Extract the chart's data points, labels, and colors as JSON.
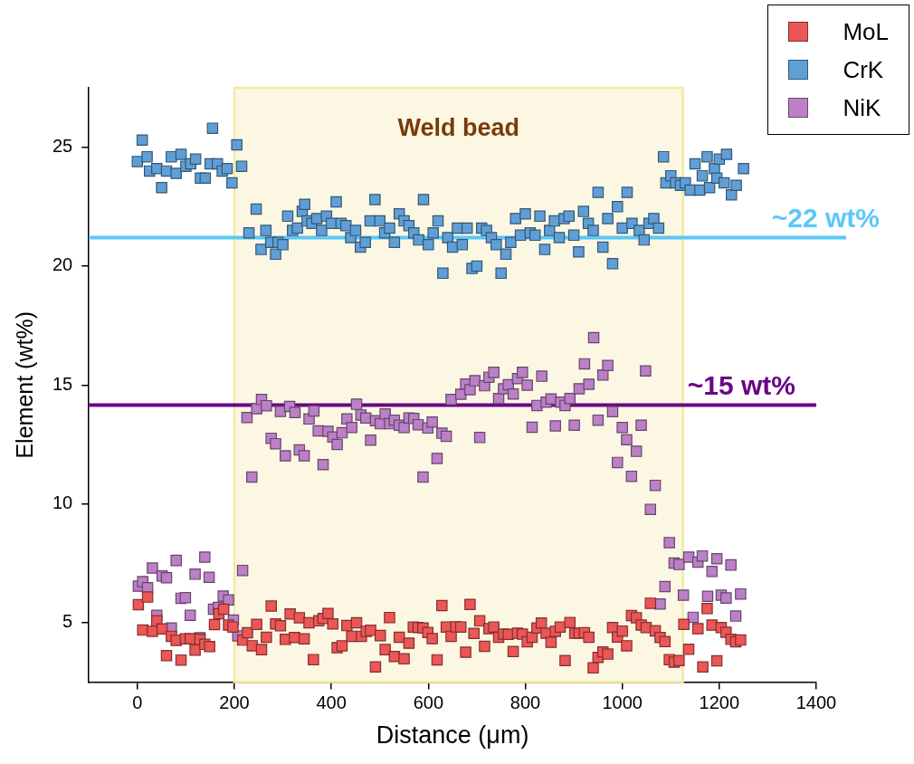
{
  "chart_data": {
    "type": "scatter",
    "xlabel": "Distance (μm)",
    "ylabel": "Element (wt%)",
    "xlim": [
      -100,
      1400
    ],
    "xticks": [
      0,
      200,
      400,
      600,
      800,
      1000,
      1200,
      1400
    ],
    "ylim": [
      2.5,
      27.5
    ],
    "yticks": [
      5,
      10,
      15,
      20,
      25
    ],
    "grid": false,
    "legend": "top right",
    "marker": "square",
    "bands": [
      {
        "axis": "x",
        "from": 200,
        "to": 1125,
        "label": "Weld bead",
        "color": "#fbf7e2"
      }
    ],
    "ref_lines": [
      {
        "axis": "y",
        "value": 21.2,
        "label": "~22 wt%",
        "color": "#5bc8f8"
      },
      {
        "axis": "y",
        "value": 14.15,
        "label": "~15 wt%",
        "color": "#6a0585"
      }
    ],
    "series": [
      {
        "name": "MoL",
        "color": "#ec5656",
        "x": [
          2,
          21,
          11,
          31,
          40,
          51,
          60,
          70,
          80,
          90,
          99,
          109,
          119,
          129,
          139,
          149,
          159,
          168,
          178,
          188,
          197,
          217,
          227,
          237,
          246,
          256,
          266,
          276,
          285,
          295,
          305,
          315,
          324,
          334,
          344,
          354,
          363,
          374,
          383,
          393,
          403,
          412,
          422,
          432,
          442,
          452,
          462,
          472,
          481,
          491,
          501,
          511,
          520,
          530,
          540,
          550,
          560,
          569,
          579,
          589,
          599,
          608,
          618,
          628,
          637,
          647,
          657,
          667,
          677,
          686,
          694,
          706,
          716,
          725,
          735,
          745,
          755,
          765,
          775,
          784,
          794,
          804,
          814,
          824,
          833,
          843,
          853,
          862,
          872,
          882,
          892,
          902,
          911,
          922,
          931,
          940,
          950,
          960,
          970,
          980,
          990,
          1000,
          1009,
          1019,
          1029,
          1039,
          1049,
          1058,
          1068,
          1078,
          1088,
          1097,
          1107,
          1117,
          1127,
          1137,
          1156,
          1166,
          1175,
          1185,
          1195,
          1204,
          1214,
          1224,
          1234,
          1244
        ],
        "values": [
          5.76,
          6.08,
          4.69,
          4.64,
          5.08,
          4.74,
          3.62,
          4.43,
          4.26,
          3.43,
          4.32,
          4.33,
          3.85,
          4.3,
          4.09,
          4.0,
          4.92,
          5.38,
          5.57,
          4.9,
          4.82,
          4.27,
          4.58,
          4.03,
          4.93,
          3.87,
          4.39,
          5.7,
          4.95,
          4.87,
          4.3,
          5.37,
          4.38,
          5.21,
          4.32,
          5.0,
          3.45,
          5.08,
          5.18,
          5.39,
          4.95,
          3.95,
          4.03,
          4.88,
          4.43,
          5.0,
          4.43,
          4.64,
          4.68,
          3.14,
          4.46,
          3.87,
          5.22,
          3.58,
          4.39,
          3.48,
          4.14,
          4.82,
          4.8,
          4.78,
          4.59,
          4.33,
          3.44,
          5.72,
          4.82,
          4.43,
          4.83,
          4.82,
          3.76,
          5.77,
          4.55,
          5.08,
          4.01,
          4.75,
          4.82,
          4.39,
          4.52,
          4.51,
          3.79,
          4.56,
          4.52,
          4.2,
          4.39,
          4.78,
          4.99,
          4.56,
          4.18,
          4.64,
          4.82,
          3.41,
          5.01,
          4.56,
          4.56,
          4.58,
          4.39,
          3.1,
          3.54,
          3.77,
          3.68,
          4.8,
          4.4,
          4.65,
          4.03,
          5.3,
          5.21,
          4.9,
          4.8,
          5.82,
          4.66,
          4.38,
          4.21,
          3.45,
          3.34,
          3.41,
          4.93,
          3.88,
          4.75,
          3.14,
          5.6,
          4.9,
          3.4,
          4.8,
          4.6,
          4.3,
          4.2,
          4.27
        ]
      },
      {
        "name": "CrK",
        "color": "#5f9fd6",
        "x": [
          0,
          10,
          20,
          25,
          40,
          50,
          60,
          70,
          80,
          90,
          100,
          110,
          120,
          130,
          140,
          150,
          155,
          165,
          175,
          185,
          195,
          205,
          215,
          230,
          245,
          255,
          265,
          275,
          285,
          290,
          300,
          310,
          320,
          330,
          340,
          345,
          350,
          360,
          370,
          380,
          390,
          400,
          410,
          420,
          430,
          440,
          450,
          460,
          470,
          480,
          490,
          500,
          510,
          520,
          530,
          540,
          550,
          560,
          570,
          580,
          590,
          600,
          610,
          620,
          630,
          640,
          650,
          660,
          670,
          680,
          690,
          700,
          710,
          720,
          730,
          740,
          750,
          760,
          770,
          780,
          790,
          800,
          810,
          820,
          830,
          840,
          850,
          860,
          870,
          880,
          890,
          900,
          910,
          920,
          930,
          940,
          950,
          960,
          970,
          980,
          990,
          1000,
          1010,
          1020,
          1035,
          1045,
          1055,
          1065,
          1075,
          1085,
          1090,
          1100,
          1110,
          1120,
          1130,
          1140,
          1150,
          1160,
          1165,
          1175,
          1180,
          1190,
          1195,
          1200,
          1210,
          1215,
          1225,
          1235,
          1250
        ],
        "values": [
          24.4,
          25.3,
          24.6,
          24.0,
          24.1,
          23.3,
          24.0,
          24.6,
          23.9,
          24.7,
          24.2,
          24.3,
          24.5,
          23.7,
          23.7,
          24.3,
          25.8,
          24.3,
          24.0,
          24.1,
          23.5,
          25.1,
          24.2,
          21.4,
          22.4,
          20.7,
          21.5,
          21.0,
          20.5,
          21.0,
          20.9,
          22.1,
          21.5,
          21.6,
          22.3,
          22.6,
          21.9,
          21.8,
          22.0,
          21.5,
          22.1,
          21.8,
          22.7,
          21.8,
          21.7,
          21.2,
          21.5,
          20.8,
          21.0,
          21.9,
          22.8,
          21.9,
          21.4,
          21.6,
          21.0,
          22.2,
          21.9,
          21.7,
          21.4,
          21.1,
          22.8,
          20.9,
          21.4,
          21.9,
          19.7,
          21.2,
          20.8,
          21.6,
          20.9,
          21.6,
          19.9,
          20.0,
          21.6,
          21.5,
          21.2,
          20.9,
          19.7,
          20.5,
          21.0,
          22.0,
          21.3,
          22.2,
          21.4,
          21.3,
          22.1,
          20.7,
          21.5,
          21.9,
          21.2,
          22.0,
          22.1,
          21.3,
          20.6,
          22.3,
          21.8,
          21.5,
          23.1,
          20.8,
          22.0,
          20.1,
          22.5,
          21.6,
          23.1,
          21.8,
          21.5,
          21.1,
          21.8,
          22.0,
          21.6,
          24.6,
          23.5,
          23.8,
          23.5,
          23.4,
          23.5,
          23.2,
          24.3,
          23.2,
          23.8,
          24.6,
          23.3,
          24.1,
          23.7,
          24.5,
          23.5,
          24.7,
          23.0,
          23.4,
          24.1
        ]
      },
      {
        "name": "NiK",
        "color": "#bb80c6",
        "x": [
          2,
          11,
          21,
          31,
          40,
          51,
          60,
          70,
          80,
          90,
          99,
          109,
          119,
          129,
          139,
          148,
          157,
          167,
          177,
          188,
          198,
          207,
          217,
          226,
          236,
          246,
          256,
          266,
          276,
          285,
          295,
          305,
          314,
          325,
          334,
          344,
          354,
          364,
          373,
          383,
          393,
          403,
          412,
          422,
          432,
          442,
          452,
          461,
          471,
          481,
          491,
          501,
          511,
          520,
          530,
          540,
          550,
          560,
          570,
          579,
          589,
          599,
          608,
          618,
          628,
          637,
          647,
          667,
          677,
          686,
          696,
          706,
          716,
          725,
          735,
          745,
          755,
          765,
          775,
          784,
          794,
          804,
          814,
          824,
          834,
          843,
          853,
          862,
          873,
          882,
          892,
          901,
          911,
          922,
          931,
          941,
          950,
          960,
          970,
          980,
          990,
          1000,
          1009,
          1019,
          1029,
          1039,
          1048,
          1058,
          1068,
          1078,
          1088,
          1097,
          1107,
          1117,
          1126,
          1137,
          1146,
          1156,
          1165,
          1176,
          1185,
          1195,
          1204,
          1214,
          1224,
          1234,
          1244
        ],
        "values": [
          6.54,
          6.73,
          6.47,
          7.3,
          5.31,
          6.97,
          6.89,
          4.78,
          7.62,
          6.03,
          6.05,
          5.31,
          7.04,
          4.37,
          7.76,
          6.91,
          5.57,
          5.64,
          6.12,
          5.96,
          5.11,
          4.45,
          7.2,
          13.63,
          11.13,
          14.0,
          14.39,
          14.13,
          12.76,
          12.53,
          13.89,
          12.02,
          14.1,
          13.84,
          12.27,
          12.02,
          13.57,
          13.91,
          13.07,
          11.65,
          13.05,
          12.81,
          12.5,
          12.99,
          13.57,
          13.21,
          14.19,
          13.74,
          13.61,
          12.68,
          13.5,
          13.37,
          13.78,
          13.37,
          13.52,
          13.31,
          13.21,
          13.61,
          13.59,
          13.33,
          11.13,
          13.19,
          13.44,
          11.91,
          12.97,
          12.84,
          14.39,
          14.61,
          15.04,
          14.8,
          15.18,
          12.79,
          14.97,
          15.33,
          15.53,
          14.43,
          14.84,
          15.01,
          14.62,
          15.27,
          15.53,
          14.99,
          13.22,
          14.14,
          15.37,
          14.28,
          14.41,
          13.28,
          14.28,
          14.14,
          14.43,
          13.31,
          14.84,
          15.89,
          15.03,
          16.99,
          13.52,
          15.42,
          15.82,
          13.88,
          11.74,
          13.21,
          12.7,
          11.16,
          12.21,
          13.31,
          15.59,
          9.77,
          10.78,
          5.79,
          6.52,
          8.37,
          7.51,
          7.45,
          6.16,
          7.76,
          5.23,
          7.55,
          7.81,
          6.11,
          7.16,
          7.69,
          6.16,
          6.04,
          7.43,
          5.28,
          6.21
        ]
      }
    ]
  }
}
